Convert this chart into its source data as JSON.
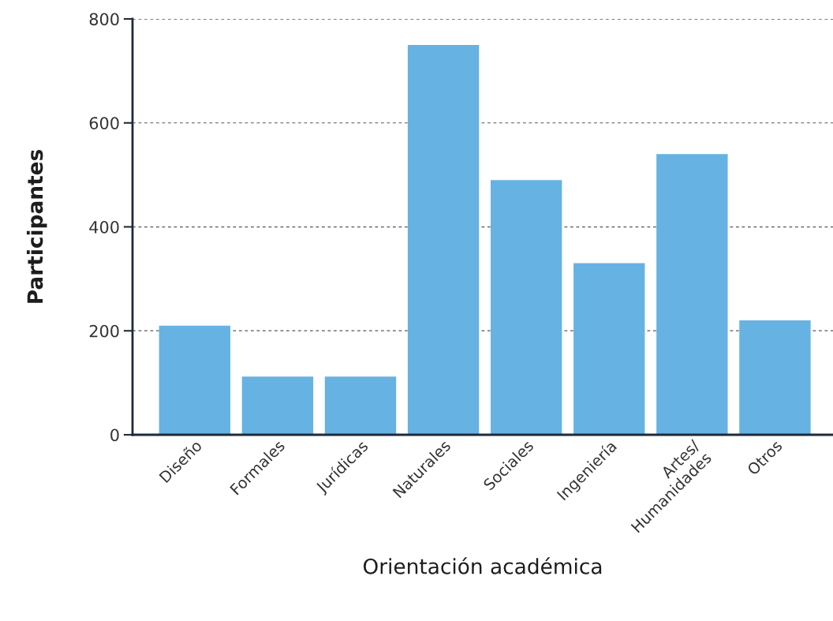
{
  "chart_data": {
    "type": "bar",
    "xlabel": "Orientación académica",
    "ylabel": "Participantes",
    "categories": [
      "Diseño",
      "Formales",
      "Jurídicas",
      "Naturales",
      "Sociales",
      "Ingeniería",
      "Artes/\nHumanidades",
      "Otros"
    ],
    "values": [
      210,
      112,
      112,
      750,
      490,
      330,
      540,
      220
    ],
    "color": "#66b2e3",
    "ylim": [
      0,
      800
    ],
    "yticks": [
      0,
      200,
      400,
      600,
      800
    ],
    "grid": "y"
  }
}
